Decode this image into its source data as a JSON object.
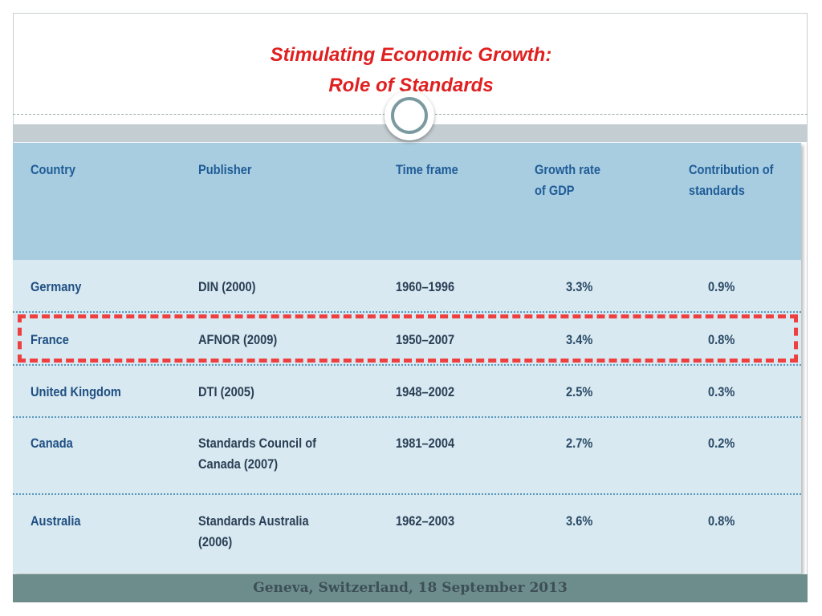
{
  "slide": {
    "title_line1": "Stimulating Economic Growth:",
    "title_line2": "Role of Standards",
    "footer": "Geneva, Switzerland, 18 September 2013"
  },
  "table": {
    "headers": {
      "country": "Country",
      "publisher": "Publisher",
      "time_frame": "Time frame",
      "growth_line1": "Growth rate",
      "growth_line2": "of GDP",
      "contrib_line1": "Contribution of",
      "contrib_line2": "standards"
    },
    "rows": [
      {
        "country": "Germany",
        "publisher_line1": "DIN (2000)",
        "publisher_line2": "",
        "time_frame": "1960–1996",
        "growth": "3.3%",
        "contribution": "0.9%"
      },
      {
        "country": "France",
        "publisher_line1": "AFNOR (2009)",
        "publisher_line2": "",
        "time_frame": "1950–2007",
        "growth": "3.4%",
        "contribution": "0.8%"
      },
      {
        "country": "United Kingdom",
        "publisher_line1": "DTI (2005)",
        "publisher_line2": "",
        "time_frame": "1948–2002",
        "growth": "2.5%",
        "contribution": "0.3%"
      },
      {
        "country": "Canada",
        "publisher_line1": "Standards Council of",
        "publisher_line2": "Canada (2007)",
        "time_frame": "1981–2004",
        "growth": "2.7%",
        "contribution": "0.2%"
      },
      {
        "country": "Australia",
        "publisher_line1": "Standards Australia",
        "publisher_line2": "(2006)",
        "time_frame": "1962–2003",
        "growth": "3.6%",
        "contribution": "0.8%"
      }
    ],
    "highlight_color": "#ee4040"
  }
}
